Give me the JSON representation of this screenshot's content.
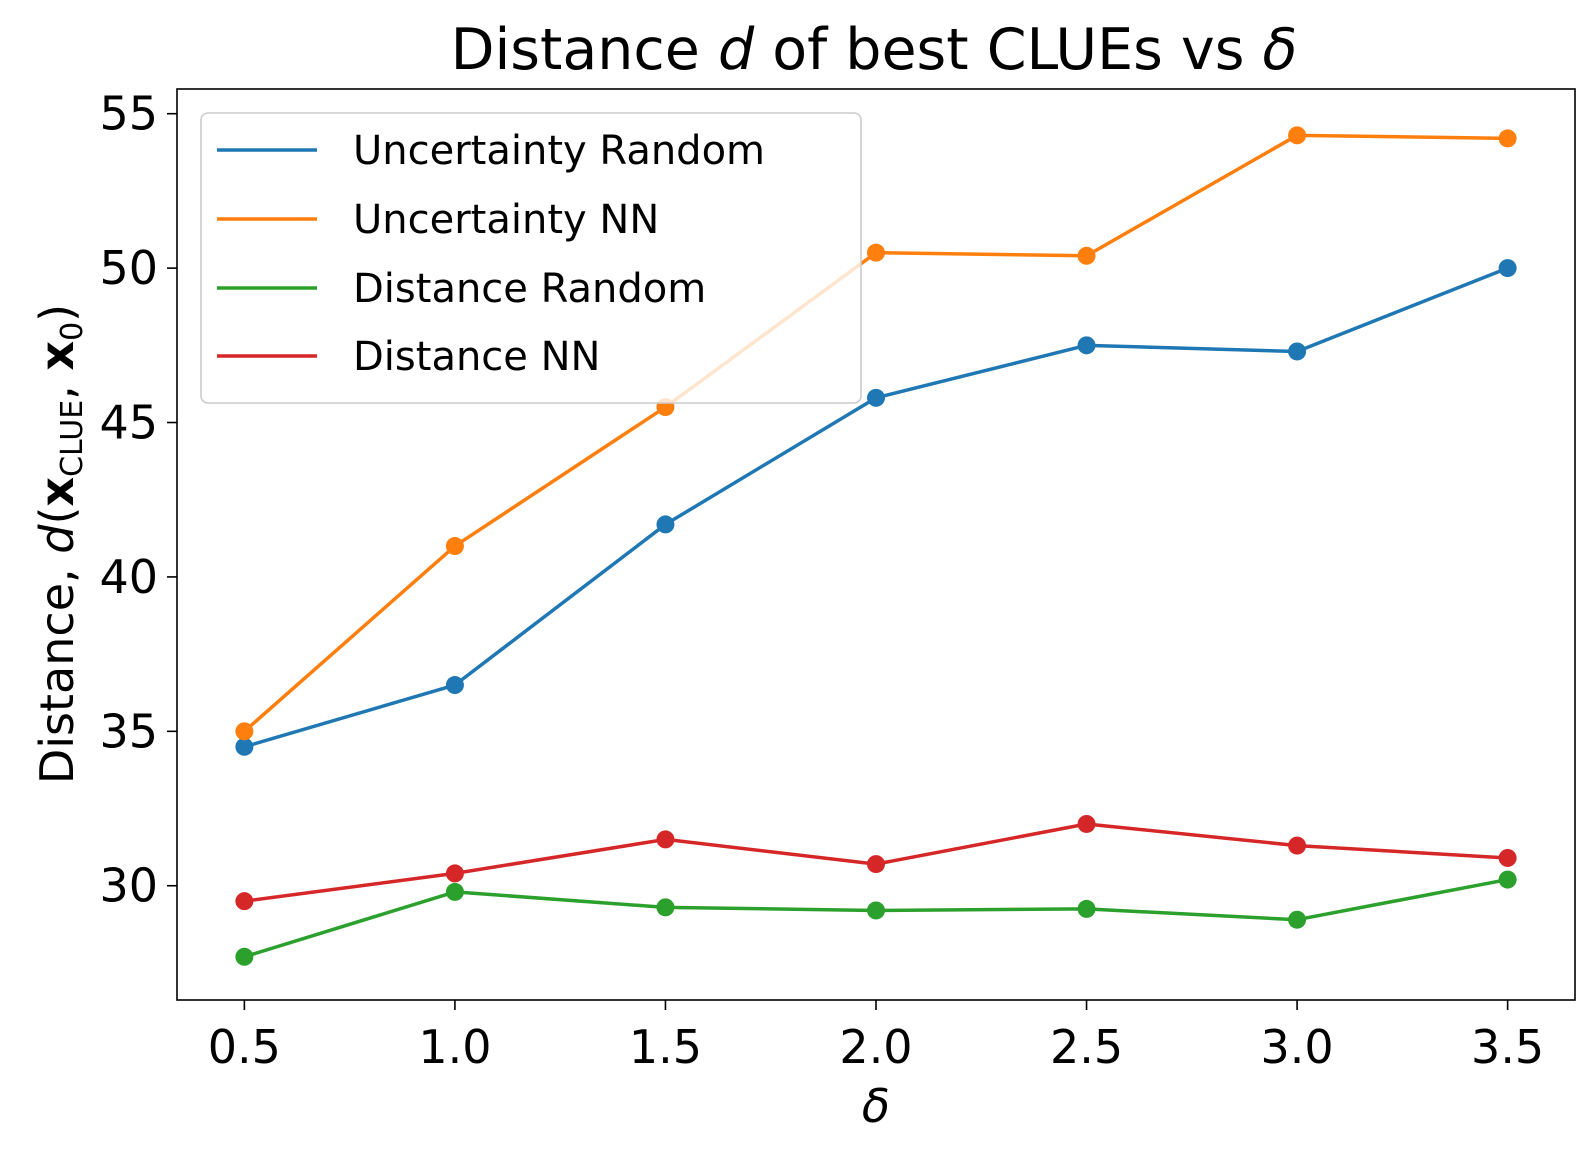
{
  "chart_data": {
    "type": "line",
    "title": {
      "prefix": "Distance ",
      "d": "d",
      "middle": " of best CLUEs vs ",
      "delta": "δ"
    },
    "xlabel": "δ",
    "ylabel": {
      "prefix": "Distance, ",
      "d": "d",
      "open": "(",
      "x1": "x",
      "sub": "CLUE",
      "sep": ", ",
      "x2": "x",
      "sub2": "0",
      "close": ")"
    },
    "x": [
      0.5,
      1.0,
      1.5,
      2.0,
      2.5,
      3.0,
      3.5
    ],
    "x_tick_labels": [
      "0.5",
      "1.0",
      "1.5",
      "2.0",
      "2.5",
      "3.0",
      "3.5"
    ],
    "y_ticks": [
      30,
      35,
      40,
      45,
      50,
      55
    ],
    "y_tick_labels": [
      "30",
      "35",
      "40",
      "45",
      "50",
      "55"
    ],
    "xlim": [
      0.34,
      3.66
    ],
    "ylim": [
      26.3,
      55.8
    ],
    "grid": false,
    "legend_position": "upper-left",
    "series": [
      {
        "name": "Uncertainty Random",
        "color": "#1f77b4",
        "values": [
          34.5,
          36.5,
          41.7,
          45.8,
          47.5,
          47.3,
          50.0
        ]
      },
      {
        "name": "Uncertainty NN",
        "color": "#ff7f0e",
        "values": [
          35.0,
          41.0,
          45.5,
          50.5,
          50.4,
          54.3,
          54.2
        ]
      },
      {
        "name": "Distance Random",
        "color": "#2ca02c",
        "values": [
          27.7,
          29.8,
          29.3,
          29.2,
          29.25,
          28.9,
          30.2
        ]
      },
      {
        "name": "Distance NN",
        "color": "#d62728",
        "values": [
          29.5,
          30.4,
          31.5,
          30.7,
          32.0,
          31.3,
          30.9
        ]
      }
    ]
  }
}
